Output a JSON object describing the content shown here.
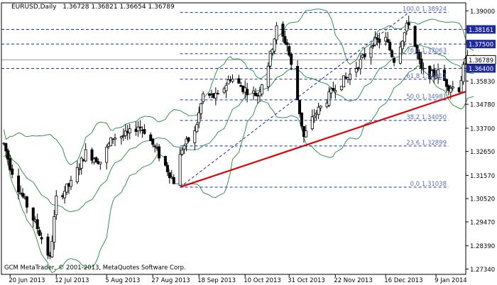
{
  "chart_data": {
    "type": "candlestick",
    "symbol": "EURUSD,Daily",
    "ohlc_header": "1.36728 1.36821 1.36654 1.36789",
    "copyright": "GCM MetaTrader, © 2001-2013, MetaQuotes Software Corp.",
    "y_ticks": [
      "1.39000",
      "1.38161",
      "1.37500",
      "1.36789",
      "1.36400",
      "1.35830",
      "1.34780",
      "1.33700",
      "1.32650",
      "1.31570",
      "1.30520",
      "1.29470",
      "1.28390",
      "1.27340"
    ],
    "x_ticks": [
      "20 Jun 2013",
      "12 Jul 2013",
      "5 Aug 2013",
      "27 Aug 2013",
      "18 Sep 2013",
      "10 Oct 2013",
      "31 Oct 2013",
      "22 Nov 2013",
      "16 Dec 2013",
      "9 Jan 2014"
    ],
    "price_lines": [
      {
        "value": 1.38161,
        "label": "1.38161"
      },
      {
        "value": 1.375,
        "label": "1.37500"
      },
      {
        "value": 1.36789,
        "label": "1.36789",
        "current": true
      },
      {
        "value": 1.364,
        "label": "1.36400"
      }
    ],
    "fibonacci": [
      {
        "level": "100.0",
        "price": 1.38924
      },
      {
        "level": "76.4",
        "price": 1.37063
      },
      {
        "level": "61.8",
        "price": 1.35912
      },
      {
        "level": "50.0",
        "price": 1.34981
      },
      {
        "level": "38.2",
        "price": 1.3405
      },
      {
        "level": "23.6",
        "price": 1.32899
      },
      {
        "level": "0.0",
        "price": 1.31038
      }
    ],
    "trendline": {
      "from": {
        "date": "2013-09-09",
        "price": 1.3104
      },
      "to": {
        "date": "2014-01-20",
        "price": 1.352
      }
    },
    "colors": {
      "grid": "#1c2fa8",
      "candle": "#000000",
      "bands": "#1e8a3a",
      "trendline": "#e00000",
      "fibo": "#5a6fb8",
      "axis_label_bg": "#1e2a9a"
    }
  }
}
